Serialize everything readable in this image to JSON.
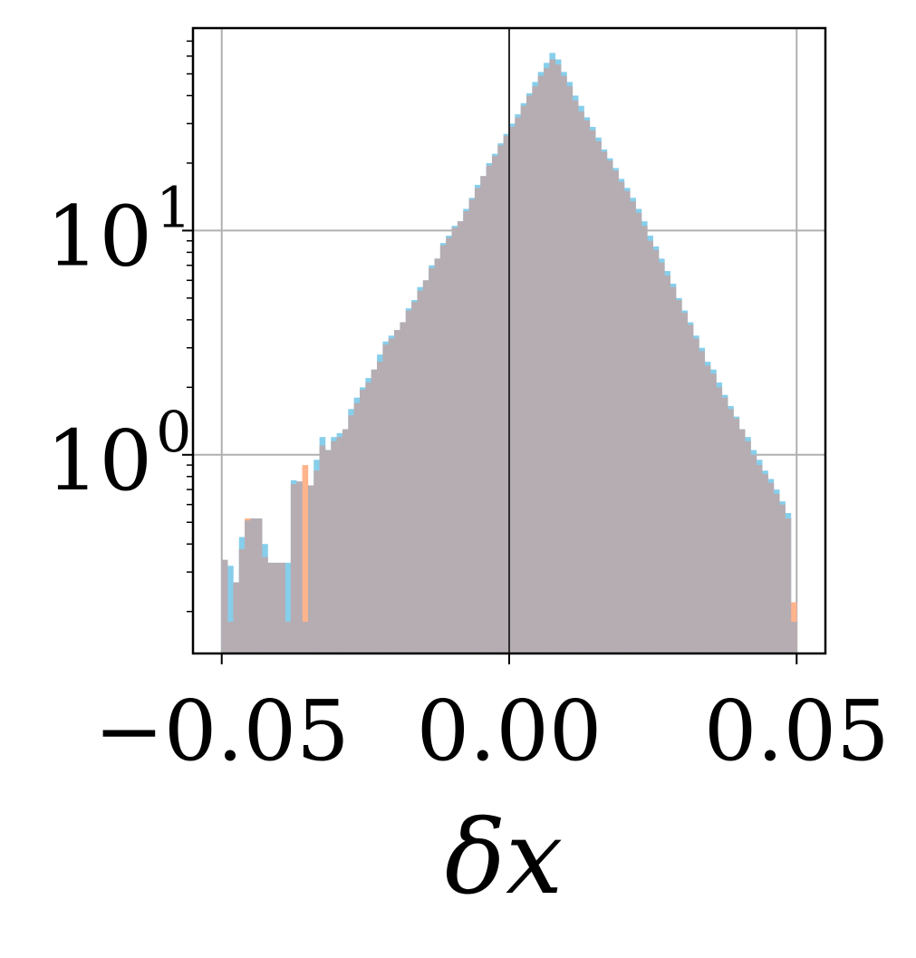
{
  "chart_data": {
    "type": "bar",
    "title": "",
    "xlabel": "δx",
    "ylabel": "",
    "x_scale": "linear",
    "y_scale": "log",
    "xlim": [
      -0.055,
      0.055
    ],
    "ylim": [
      0.13,
      80
    ],
    "grid": true,
    "x_ticks": [
      {
        "value": -0.05,
        "label": "−0.05"
      },
      {
        "value": 0.0,
        "label": "0.00"
      },
      {
        "value": 0.05,
        "label": "0.05"
      }
    ],
    "y_ticks": [
      {
        "value": 1,
        "base": "10",
        "exp": "0"
      },
      {
        "value": 10,
        "base": "10",
        "exp": "1"
      }
    ],
    "vertical_line_x": 0.0,
    "bin_range": [
      -0.05,
      0.05
    ],
    "bins": 100,
    "colors": {
      "series_a": "#87ceeb",
      "series_b": "#ffb48c",
      "overlap": "#b5adb2"
    },
    "series": [
      {
        "values": [
          0.34,
          0.32,
          0.27,
          0.43,
          0.51,
          0.52,
          0.52,
          0.4,
          0.33,
          0.33,
          0.33,
          0.33,
          0.77,
          0.76,
          0.18,
          0.73,
          0.95,
          1.2,
          1.05,
          1.2,
          1.25,
          1.3,
          1.6,
          1.8,
          2.0,
          2.2,
          2.4,
          2.8,
          3.2,
          3.4,
          3.6,
          3.9,
          4.5,
          4.9,
          5.6,
          6.0,
          7.0,
          7.5,
          8.8,
          9.5,
          10.5,
          11,
          12.5,
          14,
          16,
          17.5,
          20,
          22,
          24.5,
          27,
          30,
          33,
          37,
          41,
          46,
          51,
          56,
          62,
          58,
          51,
          46,
          40,
          36,
          32,
          29,
          26,
          23,
          21,
          19,
          17,
          15.5,
          14,
          12.5,
          11,
          9.5,
          8.5,
          7.5,
          6.6,
          5.8,
          5.0,
          4.4,
          3.9,
          3.4,
          3.0,
          2.6,
          2.4,
          2.1,
          1.85,
          1.65,
          1.48,
          1.3,
          1.2,
          1.05,
          0.95,
          0.85,
          0.78,
          0.7,
          0.62,
          0.55,
          0.18
        ]
      },
      {
        "values": [
          0.34,
          0.18,
          0.27,
          0.38,
          0.52,
          0.52,
          0.52,
          0.35,
          0.33,
          0.33,
          0.33,
          0.18,
          0.74,
          0.76,
          0.9,
          0.73,
          0.85,
          1.1,
          1.05,
          1.15,
          1.2,
          1.3,
          1.5,
          1.7,
          1.95,
          2.1,
          2.4,
          2.6,
          3.1,
          3.3,
          3.6,
          3.9,
          4.4,
          4.8,
          5.4,
          6.0,
          6.8,
          7.5,
          8.6,
          9.3,
          10.3,
          11,
          12.2,
          13.8,
          15.5,
          17.5,
          19.5,
          21.5,
          24,
          26.5,
          29,
          32,
          36,
          40,
          44,
          49,
          53,
          58,
          55,
          49,
          44,
          38,
          34,
          31,
          28,
          25,
          22.5,
          20.5,
          18.5,
          16.5,
          15,
          13.5,
          12,
          10.5,
          9.0,
          8.2,
          7.2,
          6.3,
          5.6,
          4.9,
          4.3,
          3.8,
          3.3,
          2.9,
          2.5,
          2.3,
          2.0,
          1.8,
          1.6,
          1.45,
          1.3,
          1.15,
          1.0,
          0.9,
          0.82,
          0.75,
          0.67,
          0.6,
          0.52,
          0.22
        ]
      }
    ]
  }
}
